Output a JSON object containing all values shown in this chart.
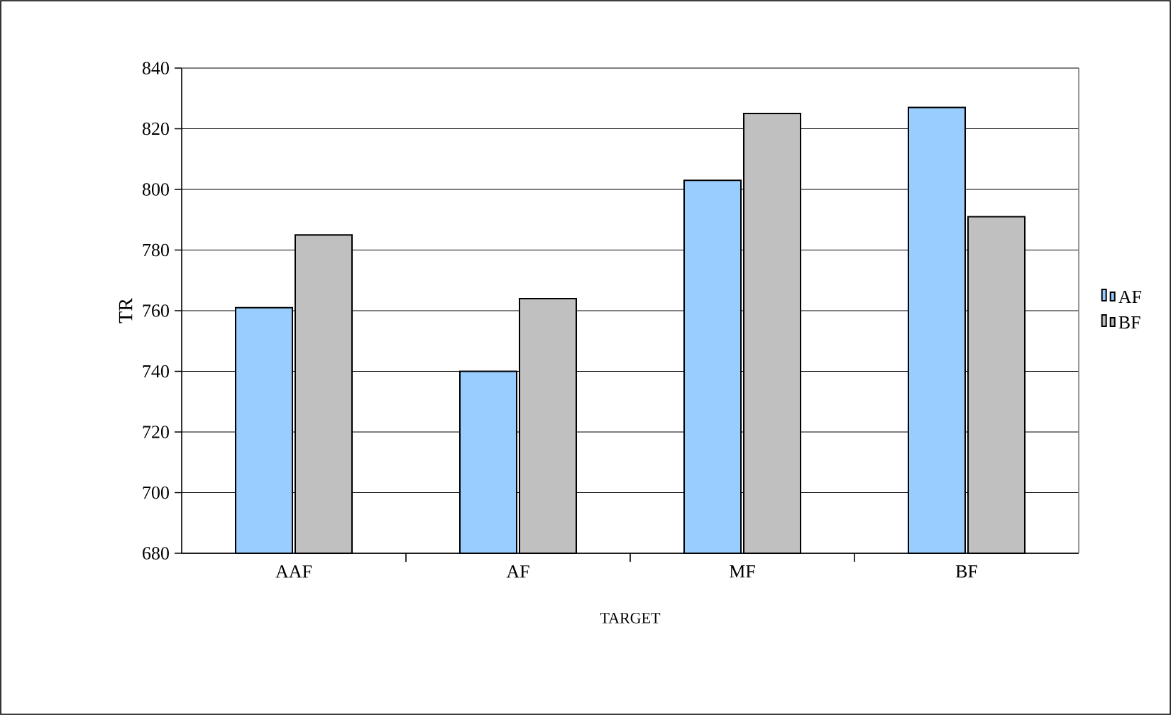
{
  "chart_data": {
    "type": "bar",
    "xlabel": "TARGET",
    "ylabel": "TR",
    "categories": [
      "AAF",
      "AF",
      "MF",
      "BF"
    ],
    "series": [
      {
        "name": "AF",
        "color": "#99ccff",
        "values": [
          761,
          740,
          803,
          827
        ]
      },
      {
        "name": "BF",
        "color": "#c0c0c0",
        "values": [
          785,
          764,
          825,
          791
        ]
      }
    ],
    "ylim": [
      680,
      840
    ],
    "yticks": [
      680,
      700,
      720,
      740,
      760,
      780,
      800,
      820,
      840
    ],
    "grid": "y",
    "legend": "right"
  }
}
